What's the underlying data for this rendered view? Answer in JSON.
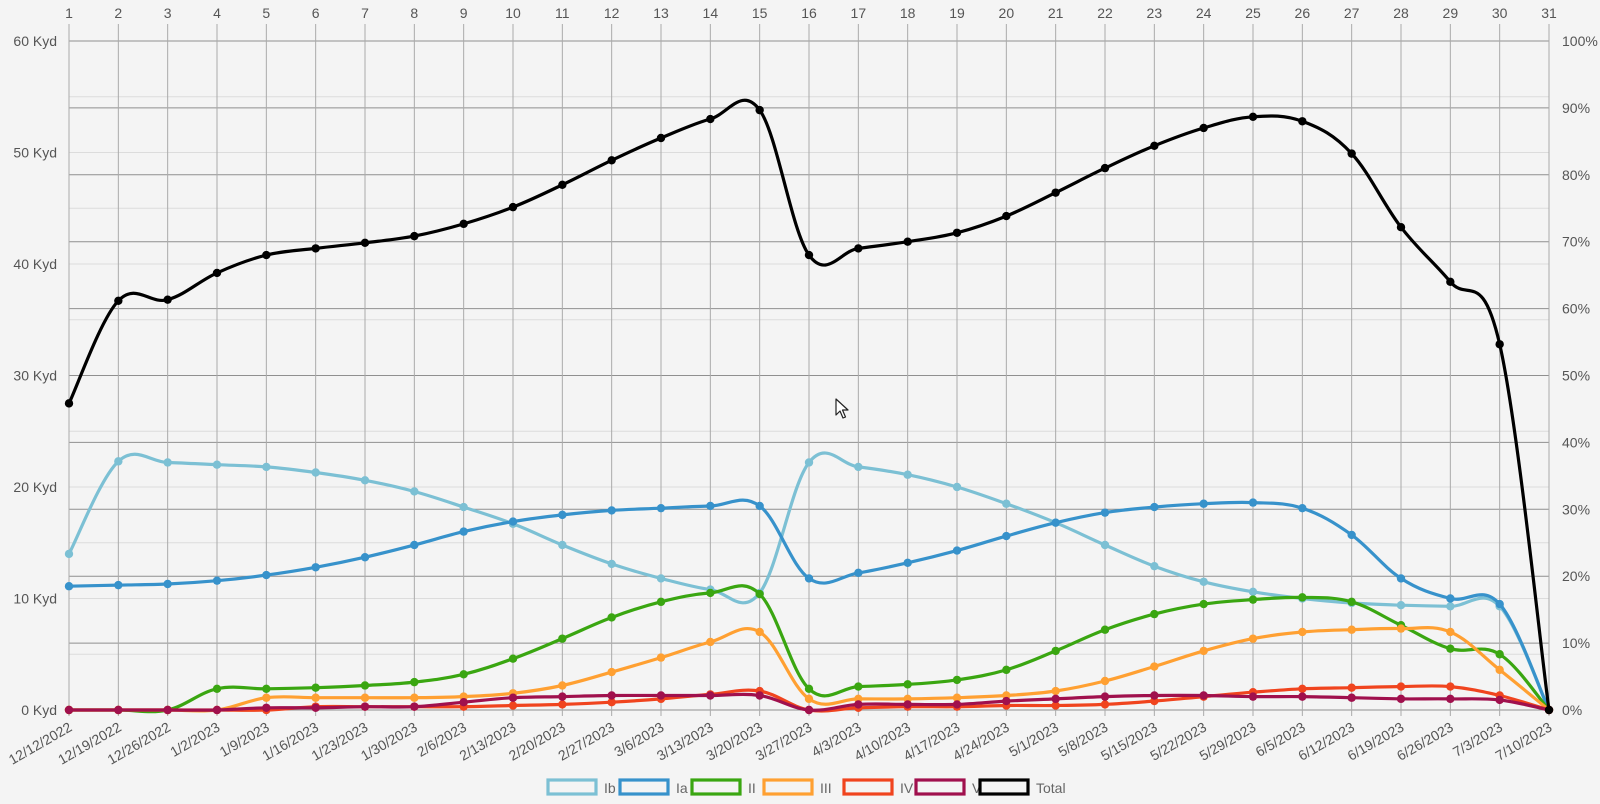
{
  "chart_data": {
    "type": "line",
    "categories": [
      "12/12/2022",
      "12/19/2022",
      "12/26/2022",
      "1/2/2023",
      "1/9/2023",
      "1/16/2023",
      "1/23/2023",
      "1/30/2023",
      "2/6/2023",
      "2/13/2023",
      "2/20/2023",
      "2/27/2023",
      "3/6/2023",
      "3/13/2023",
      "3/20/2023",
      "3/27/2023",
      "4/3/2023",
      "4/10/2023",
      "4/17/2023",
      "4/24/2023",
      "5/1/2023",
      "5/8/2023",
      "5/15/2023",
      "5/22/2023",
      "5/29/2023",
      "6/5/2023",
      "6/12/2023",
      "6/19/2023",
      "6/26/2023",
      "7/3/2023",
      "7/10/2023"
    ],
    "top_ticks": [
      "1",
      "2",
      "3",
      "4",
      "5",
      "6",
      "7",
      "8",
      "9",
      "10",
      "11",
      "12",
      "13",
      "14",
      "15",
      "16",
      "17",
      "18",
      "19",
      "20",
      "21",
      "22",
      "23",
      "24",
      "25",
      "26",
      "27",
      "28",
      "29",
      "30",
      "31"
    ],
    "y_left_ticks": [
      "0 Kyd",
      "10 Kyd",
      "20 Kyd",
      "30 Kyd",
      "40 Kyd",
      "50 Kyd",
      "60 Kyd"
    ],
    "y_right_ticks": [
      "0%",
      "10%",
      "20%",
      "30%",
      "40%",
      "50%",
      "60%",
      "70%",
      "80%",
      "90%",
      "100%"
    ],
    "ylim": [
      0,
      60
    ],
    "ylim_right": [
      0,
      100
    ],
    "grid": true,
    "legend_position": "bottom",
    "series": [
      {
        "name": "Ib",
        "color": "#7cc0d4",
        "values": [
          14.0,
          22.3,
          22.2,
          22.0,
          21.8,
          21.3,
          20.6,
          19.6,
          18.2,
          16.7,
          14.8,
          13.1,
          11.8,
          10.8,
          10.5,
          22.2,
          21.8,
          21.1,
          20.0,
          18.5,
          16.8,
          14.8,
          12.9,
          11.5,
          10.6,
          10.0,
          9.6,
          9.4,
          9.3,
          9.3,
          0
        ]
      },
      {
        "name": "Ia",
        "color": "#3792cb",
        "values": [
          11.1,
          11.2,
          11.3,
          11.6,
          12.1,
          12.8,
          13.7,
          14.8,
          16.0,
          16.9,
          17.5,
          17.9,
          18.1,
          18.3,
          18.3,
          11.8,
          12.3,
          13.2,
          14.3,
          15.6,
          16.8,
          17.7,
          18.2,
          18.5,
          18.6,
          18.1,
          15.7,
          11.8,
          10.0,
          9.5,
          0
        ]
      },
      {
        "name": "II",
        "color": "#3aa611",
        "values": [
          0,
          0,
          0,
          1.9,
          1.9,
          2.0,
          2.2,
          2.5,
          3.2,
          4.6,
          6.4,
          8.3,
          9.7,
          10.5,
          10.4,
          1.9,
          2.1,
          2.3,
          2.7,
          3.6,
          5.3,
          7.2,
          8.6,
          9.5,
          9.9,
          10.1,
          9.7,
          7.6,
          5.5,
          5.0,
          0
        ]
      },
      {
        "name": "III",
        "color": "#ffa032",
        "values": [
          0,
          0,
          0,
          0,
          1.1,
          1.1,
          1.1,
          1.1,
          1.2,
          1.5,
          2.2,
          3.4,
          4.7,
          6.1,
          7.0,
          1.0,
          1.0,
          1.0,
          1.1,
          1.3,
          1.7,
          2.6,
          3.9,
          5.3,
          6.4,
          7.0,
          7.2,
          7.3,
          7.0,
          3.6,
          0
        ]
      },
      {
        "name": "IV",
        "color": "#f0441e",
        "values": [
          0,
          0,
          0,
          0,
          0,
          0.3,
          0.3,
          0.3,
          0.3,
          0.4,
          0.5,
          0.7,
          1.0,
          1.4,
          1.7,
          0,
          0.2,
          0.3,
          0.3,
          0.4,
          0.4,
          0.5,
          0.8,
          1.2,
          1.6,
          1.9,
          2.0,
          2.1,
          2.1,
          1.3,
          0
        ]
      },
      {
        "name": "V",
        "color": "#a0104d",
        "values": [
          0,
          0,
          0,
          0,
          0.2,
          0.2,
          0.3,
          0.3,
          0.7,
          1.1,
          1.2,
          1.3,
          1.3,
          1.3,
          1.3,
          0,
          0.5,
          0.5,
          0.5,
          0.8,
          1.0,
          1.2,
          1.3,
          1.3,
          1.2,
          1.2,
          1.1,
          1.0,
          1.0,
          0.9,
          0
        ]
      },
      {
        "name": "Total",
        "color": "#000000",
        "values": [
          27.5,
          36.7,
          36.8,
          39.2,
          40.8,
          41.4,
          41.9,
          42.5,
          43.6,
          45.1,
          47.1,
          49.3,
          51.3,
          53.0,
          53.8,
          40.8,
          41.4,
          42.0,
          42.8,
          44.3,
          46.4,
          48.6,
          50.6,
          52.2,
          53.2,
          52.8,
          49.9,
          43.3,
          38.4,
          32.8,
          0
        ]
      }
    ]
  }
}
